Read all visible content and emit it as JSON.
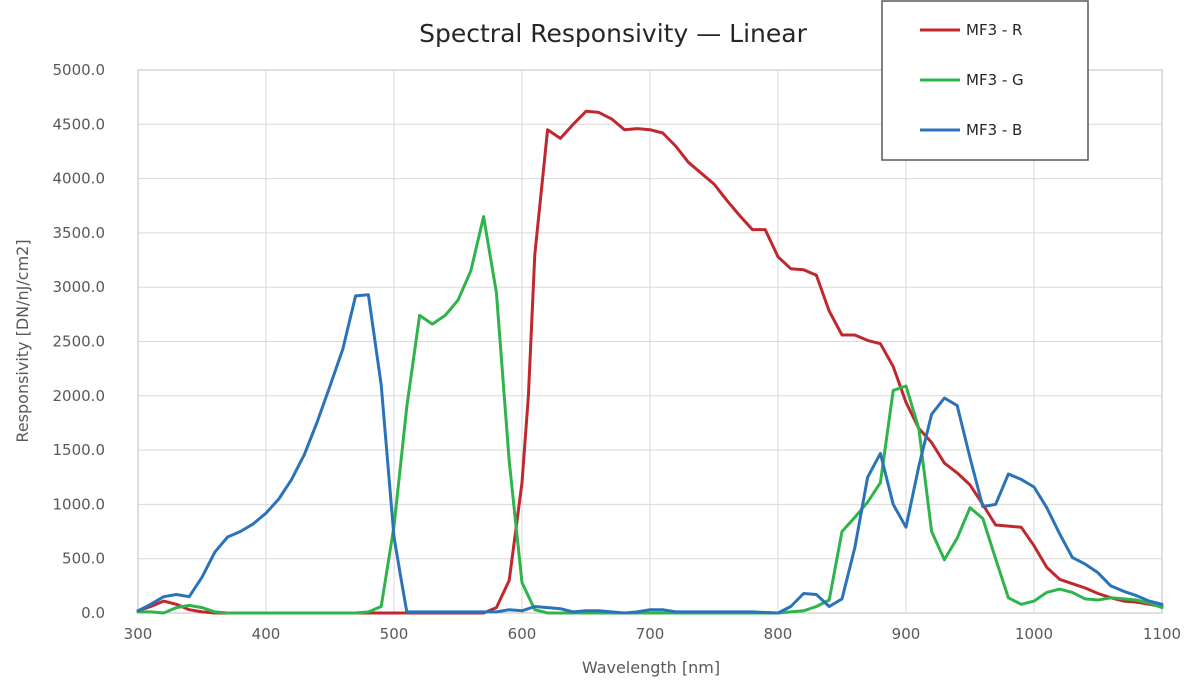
{
  "chart_data": {
    "type": "line",
    "title": "Spectral Responsivity — Linear",
    "xlabel": "Wavelength [nm]",
    "ylabel": "Responsivity [DN/nJ/cm2]",
    "xlim": [
      300,
      1100
    ],
    "ylim": [
      0,
      5000
    ],
    "x_ticks": [
      300,
      400,
      500,
      600,
      700,
      800,
      900,
      1000,
      1100
    ],
    "x_tick_labels": [
      "300",
      "400",
      "500",
      "600",
      "700",
      "800",
      "900",
      "1000",
      "1100"
    ],
    "y_ticks": [
      0,
      500,
      1000,
      1500,
      2000,
      2500,
      3000,
      3500,
      4000,
      4500,
      5000
    ],
    "y_tick_labels": [
      "0.0",
      "500.0",
      "1000.0",
      "1500.0",
      "2000.0",
      "2500.0",
      "3000.0",
      "3500.0",
      "4000.0",
      "4500.0",
      "5000.0"
    ],
    "grid": true,
    "legend_position": "top-right",
    "series": [
      {
        "name": "MF3 - R",
        "color": "#c0282d",
        "points": [
          [
            300,
            20
          ],
          [
            310,
            60
          ],
          [
            320,
            110
          ],
          [
            330,
            80
          ],
          [
            340,
            30
          ],
          [
            350,
            10
          ],
          [
            360,
            0
          ],
          [
            400,
            0
          ],
          [
            500,
            0
          ],
          [
            570,
            0
          ],
          [
            580,
            50
          ],
          [
            590,
            300
          ],
          [
            600,
            1200
          ],
          [
            605,
            2000
          ],
          [
            610,
            3300
          ],
          [
            620,
            4450
          ],
          [
            630,
            4370
          ],
          [
            640,
            4500
          ],
          [
            650,
            4620
          ],
          [
            660,
            4610
          ],
          [
            670,
            4550
          ],
          [
            680,
            4450
          ],
          [
            690,
            4460
          ],
          [
            700,
            4450
          ],
          [
            710,
            4420
          ],
          [
            720,
            4300
          ],
          [
            730,
            4150
          ],
          [
            740,
            4050
          ],
          [
            750,
            3950
          ],
          [
            760,
            3800
          ],
          [
            770,
            3660
          ],
          [
            780,
            3530
          ],
          [
            790,
            3530
          ],
          [
            800,
            3280
          ],
          [
            810,
            3170
          ],
          [
            820,
            3160
          ],
          [
            830,
            3110
          ],
          [
            840,
            2780
          ],
          [
            850,
            2560
          ],
          [
            860,
            2560
          ],
          [
            870,
            2510
          ],
          [
            880,
            2480
          ],
          [
            890,
            2270
          ],
          [
            900,
            1940
          ],
          [
            910,
            1700
          ],
          [
            920,
            1570
          ],
          [
            930,
            1380
          ],
          [
            940,
            1290
          ],
          [
            950,
            1180
          ],
          [
            960,
            1000
          ],
          [
            970,
            810
          ],
          [
            980,
            800
          ],
          [
            990,
            790
          ],
          [
            1000,
            620
          ],
          [
            1010,
            420
          ],
          [
            1020,
            310
          ],
          [
            1030,
            270
          ],
          [
            1040,
            230
          ],
          [
            1050,
            180
          ],
          [
            1060,
            140
          ],
          [
            1070,
            110
          ],
          [
            1080,
            100
          ],
          [
            1090,
            80
          ],
          [
            1100,
            60
          ]
        ]
      },
      {
        "name": "MF3 - G",
        "color": "#2fb44c",
        "points": [
          [
            300,
            10
          ],
          [
            310,
            10
          ],
          [
            320,
            0
          ],
          [
            330,
            50
          ],
          [
            340,
            70
          ],
          [
            350,
            50
          ],
          [
            360,
            10
          ],
          [
            370,
            0
          ],
          [
            400,
            0
          ],
          [
            470,
            0
          ],
          [
            480,
            10
          ],
          [
            490,
            60
          ],
          [
            500,
            800
          ],
          [
            510,
            1900
          ],
          [
            520,
            2740
          ],
          [
            530,
            2660
          ],
          [
            540,
            2740
          ],
          [
            550,
            2880
          ],
          [
            560,
            3150
          ],
          [
            570,
            3650
          ],
          [
            580,
            2950
          ],
          [
            590,
            1400
          ],
          [
            600,
            280
          ],
          [
            610,
            30
          ],
          [
            620,
            0
          ],
          [
            630,
            0
          ],
          [
            700,
            0
          ],
          [
            800,
            0
          ],
          [
            820,
            20
          ],
          [
            830,
            60
          ],
          [
            840,
            120
          ],
          [
            850,
            750
          ],
          [
            860,
            880
          ],
          [
            870,
            1020
          ],
          [
            880,
            1200
          ],
          [
            890,
            2050
          ],
          [
            900,
            2090
          ],
          [
            910,
            1700
          ],
          [
            920,
            750
          ],
          [
            930,
            490
          ],
          [
            940,
            690
          ],
          [
            950,
            970
          ],
          [
            960,
            870
          ],
          [
            970,
            500
          ],
          [
            980,
            140
          ],
          [
            990,
            80
          ],
          [
            1000,
            110
          ],
          [
            1010,
            190
          ],
          [
            1020,
            220
          ],
          [
            1030,
            190
          ],
          [
            1040,
            130
          ],
          [
            1050,
            120
          ],
          [
            1060,
            140
          ],
          [
            1070,
            130
          ],
          [
            1080,
            120
          ],
          [
            1090,
            90
          ],
          [
            1100,
            50
          ]
        ]
      },
      {
        "name": "MF3 - B",
        "color": "#2b73b8",
        "points": [
          [
            300,
            20
          ],
          [
            310,
            80
          ],
          [
            320,
            150
          ],
          [
            330,
            170
          ],
          [
            340,
            150
          ],
          [
            350,
            330
          ],
          [
            360,
            560
          ],
          [
            370,
            700
          ],
          [
            380,
            750
          ],
          [
            390,
            820
          ],
          [
            400,
            920
          ],
          [
            410,
            1050
          ],
          [
            420,
            1230
          ],
          [
            430,
            1460
          ],
          [
            440,
            1760
          ],
          [
            450,
            2090
          ],
          [
            460,
            2430
          ],
          [
            470,
            2920
          ],
          [
            480,
            2930
          ],
          [
            490,
            2100
          ],
          [
            500,
            700
          ],
          [
            505,
            350
          ],
          [
            510,
            10
          ],
          [
            520,
            10
          ],
          [
            540,
            10
          ],
          [
            550,
            10
          ],
          [
            580,
            10
          ],
          [
            590,
            30
          ],
          [
            600,
            20
          ],
          [
            610,
            60
          ],
          [
            620,
            50
          ],
          [
            630,
            40
          ],
          [
            640,
            10
          ],
          [
            650,
            20
          ],
          [
            660,
            20
          ],
          [
            680,
            0
          ],
          [
            690,
            10
          ],
          [
            700,
            30
          ],
          [
            710,
            30
          ],
          [
            720,
            10
          ],
          [
            780,
            10
          ],
          [
            800,
            0
          ],
          [
            810,
            60
          ],
          [
            820,
            180
          ],
          [
            830,
            170
          ],
          [
            840,
            60
          ],
          [
            850,
            130
          ],
          [
            860,
            600
          ],
          [
            870,
            1250
          ],
          [
            880,
            1470
          ],
          [
            890,
            1000
          ],
          [
            900,
            790
          ],
          [
            910,
            1350
          ],
          [
            920,
            1830
          ],
          [
            930,
            1980
          ],
          [
            940,
            1910
          ],
          [
            950,
            1430
          ],
          [
            960,
            980
          ],
          [
            970,
            1000
          ],
          [
            980,
            1280
          ],
          [
            990,
            1230
          ],
          [
            1000,
            1160
          ],
          [
            1010,
            970
          ],
          [
            1020,
            730
          ],
          [
            1030,
            510
          ],
          [
            1040,
            450
          ],
          [
            1050,
            370
          ],
          [
            1060,
            250
          ],
          [
            1070,
            200
          ],
          [
            1080,
            160
          ],
          [
            1090,
            110
          ],
          [
            1100,
            80
          ]
        ]
      }
    ]
  }
}
